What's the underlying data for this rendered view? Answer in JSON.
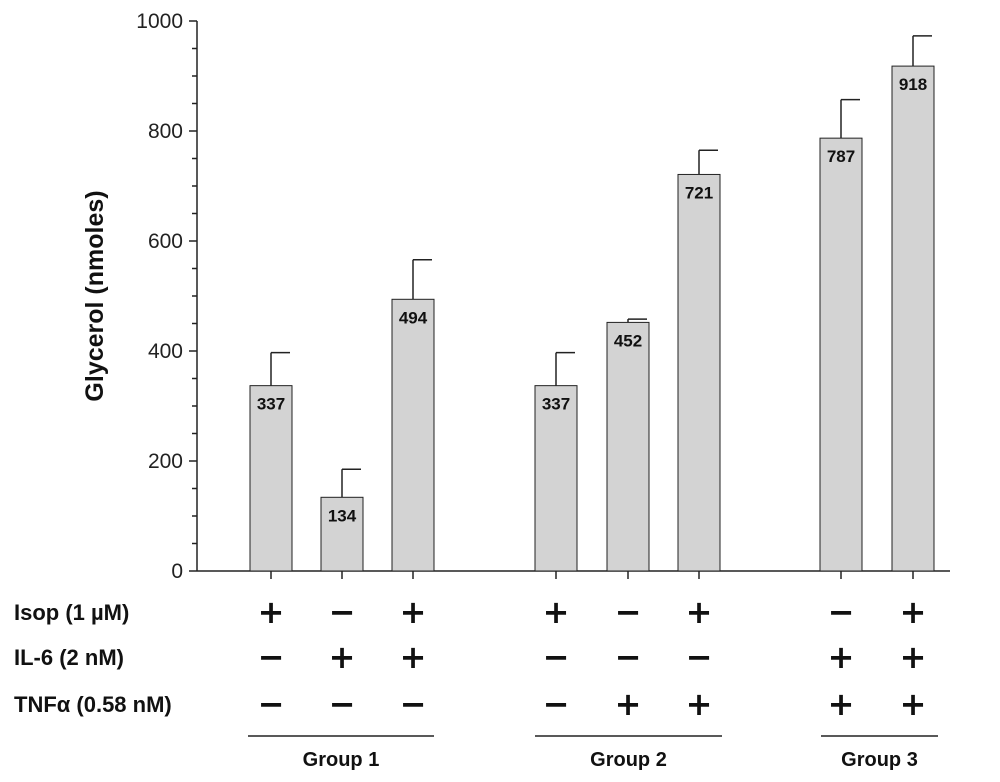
{
  "chart_data": {
    "type": "bar",
    "ylabel": "Glycerol (nmoles)",
    "ylim": [
      0,
      1000
    ],
    "yticks": [
      "0",
      "200",
      "400",
      "600",
      "800",
      "1000"
    ],
    "bars": [
      {
        "group": 0,
        "value": 337,
        "error": 60,
        "label": "337"
      },
      {
        "group": 0,
        "value": 134,
        "error": 51,
        "label": "134"
      },
      {
        "group": 0,
        "value": 494,
        "error": 72,
        "label": "494"
      },
      {
        "group": 1,
        "value": 337,
        "error": 60,
        "label": "337"
      },
      {
        "group": 1,
        "value": 452,
        "error": 6,
        "label": "452"
      },
      {
        "group": 1,
        "value": 721,
        "error": 44,
        "label": "721"
      },
      {
        "group": 2,
        "value": 787,
        "error": 70,
        "label": "787"
      },
      {
        "group": 2,
        "value": 918,
        "error": 55,
        "label": "918"
      }
    ],
    "conditions": [
      {
        "label": "Isop (1 µM)",
        "signs": [
          "+",
          "−",
          "+",
          "+",
          "−",
          "+",
          "−",
          "+"
        ]
      },
      {
        "label": "IL-6 (2 nM)",
        "signs": [
          "−",
          "+",
          "+",
          "−",
          "−",
          "−",
          "+",
          "+"
        ]
      },
      {
        "label": "TNFα (0.58 nM)",
        "signs": [
          "−",
          "−",
          "−",
          "−",
          "+",
          "+",
          "+",
          "+"
        ]
      }
    ],
    "groups": [
      "Group 1",
      "Group 2",
      "Group 3"
    ]
  }
}
